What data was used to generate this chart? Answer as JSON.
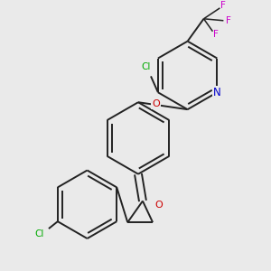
{
  "bg_color": "#eaeaea",
  "bond_color": "#222222",
  "atom_colors": {
    "Cl": "#00aa00",
    "N": "#0000cc",
    "O": "#cc0000",
    "F": "#cc00cc",
    "C": "#222222"
  },
  "lw": 1.4,
  "fs": 7.5
}
